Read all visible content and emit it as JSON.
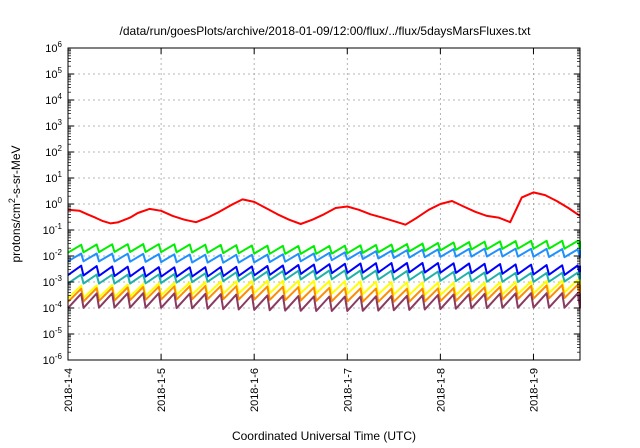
{
  "chart_data": {
    "type": "line",
    "title": "/data/run/goesPlots/archive/2018-01-09/12:00/flux/../flux/5daysMarsFluxes.txt",
    "xlabel": "Coordinated Universal Time (UTC)",
    "ylabel": {
      "base": "protons/cm",
      "sup": "2",
      "rest": "-s-sr-MeV"
    },
    "x_scale": "time",
    "xlim": [
      "2018-01-04 00:00",
      "2018-01-09 12:00"
    ],
    "x_ticks": [
      "2018-1-4",
      "2018-1-5",
      "2018-1-6",
      "2018-1-7",
      "2018-1-8",
      "2018-1-9"
    ],
    "y_scale": "log",
    "ylim": [
      1e-06,
      1000000.0
    ],
    "y_ticks": [
      {
        "base": "10",
        "exp": "-6"
      },
      {
        "base": "10",
        "exp": "-5"
      },
      {
        "base": "10",
        "exp": "-4"
      },
      {
        "base": "10",
        "exp": "-3"
      },
      {
        "base": "10",
        "exp": "-2"
      },
      {
        "base": "10",
        "exp": "-1"
      },
      {
        "base": "10",
        "exp": "0"
      },
      {
        "base": "10",
        "exp": "1"
      },
      {
        "base": "10",
        "exp": "2"
      },
      {
        "base": "10",
        "exp": "3"
      },
      {
        "base": "10",
        "exp": "4"
      },
      {
        "base": "10",
        "exp": "5"
      },
      {
        "base": "10",
        "exp": "6"
      }
    ],
    "grid": true,
    "series": [
      {
        "color": "#ff0000",
        "pattern": "drifting",
        "x": [
          "2018-01-04 00:00",
          "2018-01-04 03:00",
          "2018-01-04 05:00",
          "2018-01-04 07:00",
          "2018-01-04 09:00",
          "2018-01-04 11:00",
          "2018-01-04 13:00",
          "2018-01-04 16:00",
          "2018-01-04 18:00",
          "2018-01-04 21:00",
          "2018-01-05 00:00",
          "2018-01-05 03:00",
          "2018-01-05 06:00",
          "2018-01-05 09:00",
          "2018-01-05 12:00",
          "2018-01-05 15:00",
          "2018-01-05 18:00",
          "2018-01-05 21:00",
          "2018-01-06 00:00",
          "2018-01-06 03:00",
          "2018-01-06 06:00",
          "2018-01-06 09:00",
          "2018-01-06 12:00",
          "2018-01-06 15:00",
          "2018-01-06 18:00",
          "2018-01-06 21:00",
          "2018-01-07 00:00",
          "2018-01-07 03:00",
          "2018-01-07 06:00",
          "2018-01-07 09:00",
          "2018-01-07 12:00",
          "2018-01-07 15:00",
          "2018-01-07 18:00",
          "2018-01-07 21:00",
          "2018-01-08 00:00",
          "2018-01-08 03:00",
          "2018-01-08 06:00",
          "2018-01-08 09:00",
          "2018-01-08 12:00",
          "2018-01-08 15:00",
          "2018-01-08 18:00",
          "2018-01-08 21:00",
          "2018-01-09 00:00",
          "2018-01-09 03:00",
          "2018-01-09 06:00",
          "2018-01-09 09:00",
          "2018-01-09 12:00"
        ],
        "y": [
          0.6,
          0.55,
          0.4,
          0.3,
          0.22,
          0.18,
          0.2,
          0.3,
          0.45,
          0.65,
          0.55,
          0.35,
          0.25,
          0.2,
          0.3,
          0.5,
          0.9,
          1.5,
          1.2,
          0.7,
          0.4,
          0.25,
          0.17,
          0.25,
          0.4,
          0.7,
          0.8,
          0.6,
          0.4,
          0.3,
          0.22,
          0.16,
          0.3,
          0.6,
          1.0,
          1.3,
          0.8,
          0.5,
          0.35,
          0.3,
          0.2,
          1.8,
          2.8,
          2.2,
          1.3,
          0.7,
          0.35
        ]
      },
      {
        "color": "#00ee00",
        "pattern": "sawtooth",
        "base": 0.012,
        "amp": 2.0,
        "trend": 1.2
      },
      {
        "color": "#1e90ff",
        "pattern": "sawtooth",
        "base": 0.0055,
        "amp": 2.0,
        "trend": 1.3
      },
      {
        "color": "#0000ff",
        "pattern": "sawtooth",
        "base": 0.0018,
        "amp": 2.3,
        "trend": 1.1
      },
      {
        "color": "#20b2aa",
        "pattern": "sawtooth",
        "base": 0.001,
        "amp": 2.2,
        "trend": 1.1
      },
      {
        "color": "#ffff00",
        "pattern": "sawtooth",
        "base": 0.00028,
        "amp": 3.0,
        "trend": 1.2
      },
      {
        "color": "#ff8c00",
        "pattern": "sawtooth",
        "base": 0.00018,
        "amp": 3.2,
        "trend": 1.1
      },
      {
        "color": "#8b3a62",
        "pattern": "sawtooth",
        "base": 9e-05,
        "amp": 3.6,
        "trend": 1.0
      }
    ]
  }
}
